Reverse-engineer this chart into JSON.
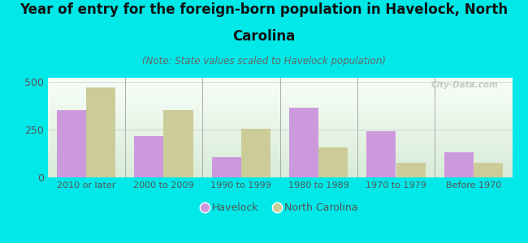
{
  "categories": [
    "2010 or later",
    "2000 to 2009",
    "1990 to 1999",
    "1980 to 1989",
    "1970 to 1979",
    "Before 1970"
  ],
  "havelock": [
    350,
    215,
    105,
    365,
    240,
    130
  ],
  "north_carolina": [
    470,
    350,
    255,
    155,
    75,
    75
  ],
  "havelock_color": "#cc99dd",
  "nc_color": "#cccc99",
  "title_line1": "Year of entry for the foreign-born population in Havelock, North",
  "title_line2": "Carolina",
  "subtitle": "(Note: State values scaled to Havelock population)",
  "legend_havelock": "Havelock",
  "legend_nc": "North Carolina",
  "ylim": [
    0,
    520
  ],
  "yticks": [
    0,
    250,
    500
  ],
  "background_color": "#00e8e8",
  "plot_bg_color_top": "#f8fef8",
  "plot_bg_color_bottom": "#d8ecd8",
  "watermark": "City-Data.com",
  "title_fontsize": 12,
  "subtitle_fontsize": 8.5,
  "bar_width": 0.38,
  "grid_color": "#cccccc",
  "title_color": "#111111",
  "subtitle_color": "#666666",
  "tick_color": "#555555",
  "xtick_fontsize": 8,
  "ytick_fontsize": 9
}
